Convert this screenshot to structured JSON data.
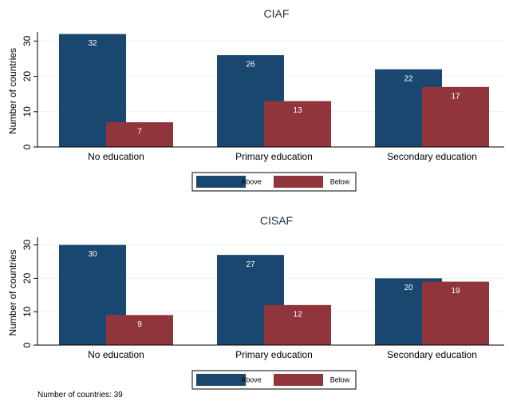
{
  "note": "Number of countries: 39",
  "chart_data": [
    {
      "type": "bar",
      "title": "CIAF",
      "ylabel": "Number of countries",
      "ylim": [
        0,
        30
      ],
      "yticks": [
        0,
        10,
        20,
        30
      ],
      "categories": [
        "No education",
        "Primary education",
        "Secondary education"
      ],
      "series": [
        {
          "name": "Above",
          "color": "#1a476f",
          "values": [
            32,
            26,
            22
          ]
        },
        {
          "name": "Below",
          "color": "#90353b",
          "values": [
            7,
            13,
            17
          ]
        }
      ],
      "legend": "bottom-center",
      "grid": true
    },
    {
      "type": "bar",
      "title": "CISAF",
      "ylabel": "Number of countries",
      "ylim": [
        0,
        30
      ],
      "yticks": [
        0,
        10,
        20,
        30
      ],
      "categories": [
        "No education",
        "Primary education",
        "Secondary education"
      ],
      "series": [
        {
          "name": "Above",
          "color": "#1a476f",
          "values": [
            30,
            27,
            20
          ]
        },
        {
          "name": "Below",
          "color": "#90353b",
          "values": [
            9,
            12,
            19
          ]
        }
      ],
      "legend": "bottom-center",
      "grid": true
    }
  ]
}
